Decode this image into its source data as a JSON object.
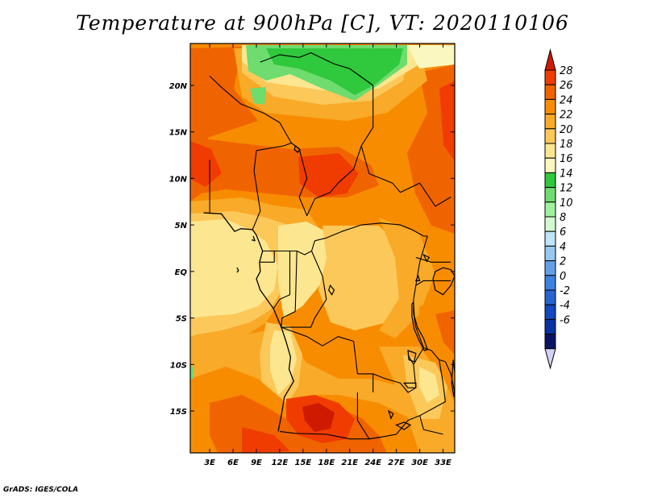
{
  "title": "Temperature at 900hPa [C], VT: 2020110106",
  "credit": "GrADS: IGES/COLA",
  "map": {
    "lat_labels": [
      "20N",
      "15N",
      "10N",
      "5N",
      "EQ",
      "5S",
      "10S",
      "15S"
    ],
    "lon_labels": [
      "3E",
      "6E",
      "9E",
      "12E",
      "15E",
      "18E",
      "21E",
      "24E",
      "27E",
      "30E",
      "33E"
    ],
    "lat_values": [
      20,
      15,
      10,
      5,
      0,
      -5,
      -10,
      -15
    ],
    "lon_values": [
      3,
      6,
      9,
      12,
      15,
      18,
      21,
      24,
      27,
      30,
      33
    ],
    "lon_range": [
      0.5,
      34.5
    ],
    "lat_range": [
      -19.5,
      24.5
    ],
    "field": "Temperature at 900hPa",
    "units": "C"
  },
  "colorbar": {
    "labels": [
      "28",
      "26",
      "24",
      "22",
      "20",
      "18",
      "16",
      "14",
      "12",
      "10",
      "8",
      "6",
      "4",
      "2",
      "0",
      "-2",
      "-4",
      "-6"
    ],
    "colors": [
      "#d01a00",
      "#f03c00",
      "#f06400",
      "#f88c00",
      "#f8aa28",
      "#fcc85a",
      "#fce690",
      "#faf8c0",
      "#30c83c",
      "#6edc6e",
      "#a0f0a0",
      "#d2fad2",
      "#c0e4fa",
      "#96c8f0",
      "#64a0e6",
      "#3c82e0",
      "#2864d2",
      "#1448be",
      "#0a32a0",
      "#0a1464",
      "#d2d2f8"
    ]
  },
  "features": {
    "countries": [
      [
        [
          9.5,
          22.5
        ],
        [
          12,
          23.3
        ],
        [
          14.5,
          23
        ],
        [
          16,
          23.5
        ],
        [
          19,
          22.3
        ],
        [
          21,
          21.8
        ],
        [
          24,
          20
        ]
      ],
      [
        [
          3,
          21
        ],
        [
          4.5,
          19.8
        ],
        [
          7,
          18
        ],
        [
          10,
          17
        ],
        [
          12,
          16
        ],
        [
          13.5,
          13.8
        ]
      ],
      [
        [
          13.5,
          13.8
        ],
        [
          14.5,
          13.2
        ],
        [
          15.5,
          10
        ],
        [
          14.5,
          8
        ],
        [
          15.5,
          6
        ],
        [
          16.5,
          7.8
        ],
        [
          18.5,
          8.5
        ],
        [
          19.5,
          9.5
        ],
        [
          21.5,
          11
        ],
        [
          22.5,
          13.5
        ],
        [
          24,
          15.5
        ],
        [
          24,
          20
        ]
      ],
      [
        [
          9,
          13
        ],
        [
          12.5,
          13.5
        ],
        [
          13.5,
          13.8
        ]
      ],
      [
        [
          9,
          13
        ],
        [
          8.7,
          10.8
        ],
        [
          9.5,
          6.5
        ],
        [
          8.5,
          4.5
        ]
      ],
      [
        [
          3,
          12
        ],
        [
          3,
          6.3
        ]
      ],
      [
        [
          22.5,
          13.5
        ],
        [
          23.5,
          10.5
        ],
        [
          25,
          10
        ],
        [
          26.5,
          9.5
        ],
        [
          27.5,
          8.5
        ],
        [
          30,
          9.5
        ],
        [
          32,
          7
        ],
        [
          34,
          8
        ]
      ],
      [
        [
          16.5,
          3.3
        ],
        [
          18,
          3.6
        ],
        [
          20,
          4.3
        ],
        [
          22.5,
          5
        ],
        [
          25,
          5.2
        ],
        [
          27.5,
          5
        ],
        [
          29,
          4.5
        ],
        [
          30.5,
          3.8
        ],
        [
          31,
          3.8
        ]
      ],
      [
        [
          9.8,
          2.2
        ],
        [
          11.3,
          2.2
        ],
        [
          13.3,
          2.2
        ],
        [
          14.2,
          2.2
        ],
        [
          15.2,
          1.8
        ],
        [
          16.1,
          2.2
        ],
        [
          16.5,
          3.3
        ]
      ],
      [
        [
          11.3,
          2.2
        ],
        [
          11.3,
          1
        ],
        [
          9.5,
          1
        ]
      ],
      [
        [
          13.3,
          2.2
        ],
        [
          13.3,
          -2.5
        ],
        [
          12,
          -3
        ],
        [
          11.2,
          -4
        ]
      ],
      [
        [
          14.2,
          2.2
        ],
        [
          14,
          -4.3
        ],
        [
          12.3,
          -5
        ],
        [
          12.2,
          -6
        ]
      ],
      [
        [
          16.1,
          2.2
        ],
        [
          17.5,
          -0.5
        ],
        [
          18,
          -3
        ],
        [
          16.5,
          -5
        ],
        [
          16,
          -6
        ],
        [
          12.2,
          -6
        ]
      ],
      [
        [
          31,
          3.8
        ],
        [
          30,
          1
        ],
        [
          29.5,
          -1.5
        ],
        [
          29.2,
          -3
        ],
        [
          29.2,
          -4.5
        ],
        [
          29.5,
          -6
        ],
        [
          30.5,
          -8.2
        ]
      ],
      [
        [
          29.5,
          1.5
        ],
        [
          31.5,
          1
        ],
        [
          34,
          1
        ]
      ],
      [
        [
          29.5,
          -1.5
        ],
        [
          30.5,
          -1
        ],
        [
          34,
          -1
        ]
      ],
      [
        [
          12.2,
          -6
        ],
        [
          15.5,
          -7
        ],
        [
          17.5,
          -8
        ],
        [
          19.5,
          -7
        ],
        [
          21.5,
          -7.5
        ],
        [
          22,
          -11
        ],
        [
          24,
          -11
        ],
        [
          24,
          -13
        ]
      ],
      [
        [
          22,
          -13
        ],
        [
          22,
          -16
        ],
        [
          23.5,
          -18
        ],
        [
          25,
          -17.8
        ],
        [
          27,
          -17.5
        ]
      ],
      [
        [
          12,
          -17.2
        ],
        [
          14,
          -17.4
        ],
        [
          18,
          -17.5
        ],
        [
          21,
          -18
        ],
        [
          23.5,
          -18
        ],
        [
          25,
          -17.8
        ]
      ],
      [
        [
          30.5,
          -8.2
        ],
        [
          31.5,
          -8.5
        ],
        [
          32.5,
          -9.5
        ],
        [
          33.3,
          -9.7
        ]
      ],
      [
        [
          24,
          -11
        ],
        [
          25.5,
          -11.5
        ],
        [
          27.5,
          -12
        ],
        [
          28.5,
          -13
        ],
        [
          29.5,
          -12.5
        ],
        [
          29.2,
          -10
        ]
      ],
      [
        [
          30.5,
          -8.2
        ],
        [
          29.2,
          -10
        ],
        [
          28.5,
          -9
        ]
      ],
      [
        [
          32.5,
          -9.5
        ],
        [
          33,
          -12
        ],
        [
          33.3,
          -14
        ],
        [
          30,
          -15.5
        ],
        [
          28.5,
          -16
        ],
        [
          27,
          -17.5
        ]
      ],
      [
        [
          30,
          -15.5
        ],
        [
          30.5,
          -17
        ],
        [
          33,
          -17.5
        ]
      ],
      [
        [
          33.3,
          -9.7
        ],
        [
          34,
          -11
        ],
        [
          34.5,
          -13
        ]
      ]
    ],
    "coast": [
      [
        [
          2.2,
          6.3
        ],
        [
          4.5,
          6.2
        ],
        [
          6.2,
          4.3
        ],
        [
          7,
          4.6
        ],
        [
          8.5,
          4.5
        ],
        [
          9,
          3.9
        ],
        [
          9.8,
          2.2
        ],
        [
          9.4,
          1
        ],
        [
          9.5,
          0
        ],
        [
          9,
          -0.8
        ],
        [
          9.5,
          -2
        ],
        [
          11.2,
          -4
        ],
        [
          12.2,
          -6
        ],
        [
          12.8,
          -7.5
        ],
        [
          13.4,
          -9.2
        ],
        [
          13.2,
          -10.5
        ],
        [
          13.8,
          -11.8
        ],
        [
          12.6,
          -13.5
        ],
        [
          12.2,
          -15.5
        ],
        [
          11.8,
          -17.2
        ]
      ],
      [
        [
          8.6,
          3.8
        ],
        [
          8.8,
          3.3
        ],
        [
          8.4,
          3.4
        ]
      ],
      [
        [
          6.5,
          0.4
        ],
        [
          6.7,
          0.1
        ],
        [
          6.5,
          -0.1
        ]
      ]
    ],
    "lakes": [
      [
        [
          29.2,
          -3.3
        ],
        [
          29.3,
          -4.8
        ],
        [
          29.7,
          -6
        ],
        [
          30.5,
          -7.2
        ],
        [
          31,
          -8.4
        ],
        [
          30.6,
          -8.5
        ],
        [
          29.9,
          -7.4
        ],
        [
          29.3,
          -6.2
        ],
        [
          29,
          -4.8
        ],
        [
          29,
          -3.5
        ]
      ],
      [
        [
          32,
          0
        ],
        [
          33,
          0.4
        ],
        [
          34,
          0.2
        ],
        [
          34.5,
          -0.5
        ],
        [
          34,
          -1.5
        ],
        [
          33,
          -2.5
        ],
        [
          32,
          -2
        ],
        [
          31.7,
          -0.8
        ]
      ],
      [
        [
          28.5,
          -8.5
        ],
        [
          29.5,
          -8.8
        ],
        [
          29.3,
          -9.7
        ],
        [
          28.6,
          -9.5
        ]
      ],
      [
        [
          28,
          -12
        ],
        [
          29.5,
          -12
        ],
        [
          29.5,
          -12.5
        ],
        [
          28.5,
          -12.5
        ]
      ],
      [
        [
          34.3,
          -9.5
        ],
        [
          34.6,
          -11.5
        ],
        [
          34.4,
          -13.5
        ],
        [
          34.1,
          -12
        ]
      ],
      [
        [
          27,
          -16.5
        ],
        [
          28,
          -17
        ],
        [
          28.8,
          -16.5
        ],
        [
          28,
          -16.2
        ]
      ],
      [
        [
          18.5,
          -1.5
        ],
        [
          19,
          -2
        ],
        [
          18.7,
          -2.5
        ],
        [
          18.3,
          -2
        ]
      ],
      [
        [
          30.5,
          1.8
        ],
        [
          31.2,
          1.5
        ],
        [
          30.9,
          1.1
        ]
      ],
      [
        [
          29.5,
          -1
        ],
        [
          30,
          -1
        ],
        [
          29.8,
          -0.5
        ]
      ],
      [
        [
          14,
          13.5
        ],
        [
          14.6,
          13.1
        ],
        [
          14.3,
          12.8
        ],
        [
          13.9,
          13.1
        ]
      ],
      [
        [
          26,
          -15
        ],
        [
          26.6,
          -15.3
        ],
        [
          26.3,
          -15.8
        ]
      ]
    ]
  }
}
